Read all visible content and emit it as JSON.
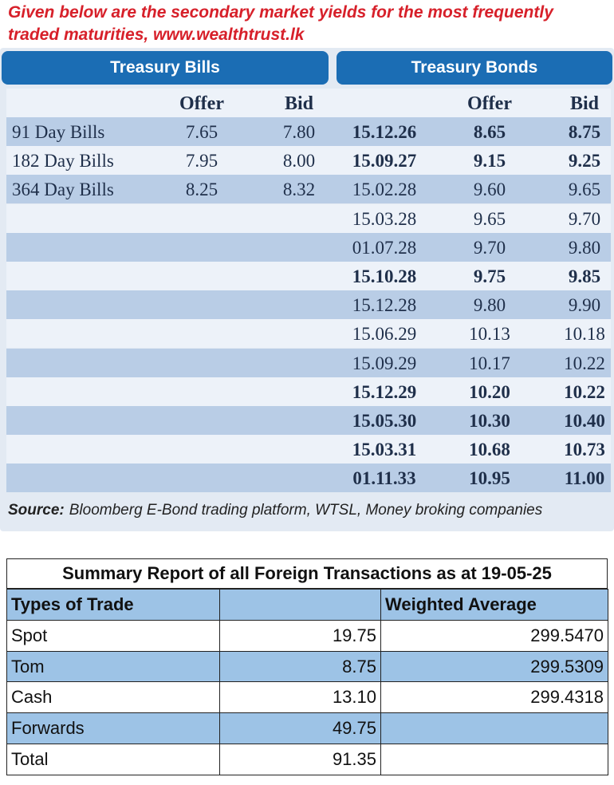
{
  "intro": "Given below are the secondary market yields for the most frequently traded maturities, www.wealthtrust.lk",
  "bills": {
    "title": "Treasury Bills",
    "columns": [
      "Offer",
      "Bid"
    ],
    "rows": [
      {
        "name": "91 Day Bills",
        "offer": "7.65",
        "bid": "7.80"
      },
      {
        "name": "182 Day Bills",
        "offer": "7.95",
        "bid": "8.00"
      },
      {
        "name": "364 Day Bills",
        "offer": "8.25",
        "bid": "8.32"
      }
    ]
  },
  "bonds": {
    "title": "Treasury Bonds",
    "columns": [
      "Offer",
      "Bid"
    ],
    "rows": [
      {
        "maturity": "15.12.26",
        "offer": "8.65",
        "bid": "8.75",
        "bold": true
      },
      {
        "maturity": "15.09.27",
        "offer": "9.15",
        "bid": "9.25",
        "bold": true
      },
      {
        "maturity": "15.02.28",
        "offer": "9.60",
        "bid": "9.65",
        "bold": false
      },
      {
        "maturity": "15.03.28",
        "offer": "9.65",
        "bid": "9.70",
        "bold": false
      },
      {
        "maturity": "01.07.28",
        "offer": "9.70",
        "bid": "9.80",
        "bold": false
      },
      {
        "maturity": "15.10.28",
        "offer": "9.75",
        "bid": "9.85",
        "bold": true
      },
      {
        "maturity": "15.12.28",
        "offer": "9.80",
        "bid": "9.90",
        "bold": false
      },
      {
        "maturity": "15.06.29",
        "offer": "10.13",
        "bid": "10.18",
        "bold": false
      },
      {
        "maturity": "15.09.29",
        "offer": "10.17",
        "bid": "10.22",
        "bold": false
      },
      {
        "maturity": "15.12.29",
        "offer": "10.20",
        "bid": "10.22",
        "bold": true
      },
      {
        "maturity": "15.05.30",
        "offer": "10.30",
        "bid": "10.40",
        "bold": true
      },
      {
        "maturity": "15.03.31",
        "offer": "10.68",
        "bid": "10.73",
        "bold": true
      },
      {
        "maturity": "01.11.33",
        "offer": "10.95",
        "bid": "11.00",
        "bold": true
      }
    ]
  },
  "source": {
    "label": "Source:",
    "text": "Bloomberg E-Bond trading platform, WTSL, Money broking companies"
  },
  "summary": {
    "title": "Summary Report of all Foreign Transactions as at 19-05-25",
    "header": {
      "type": "Types of Trade",
      "average": "Weighted Average"
    },
    "rows": [
      {
        "type": "Spot",
        "amount": "19.75",
        "average": "299.5470"
      },
      {
        "type": "Tom",
        "amount": "8.75",
        "average": "299.5309"
      },
      {
        "type": "Cash",
        "amount": "13.10",
        "average": "299.4318"
      },
      {
        "type": "Forwards",
        "amount": "49.75"
      },
      {
        "type": "Total",
        "amount": "91.35"
      }
    ]
  }
}
